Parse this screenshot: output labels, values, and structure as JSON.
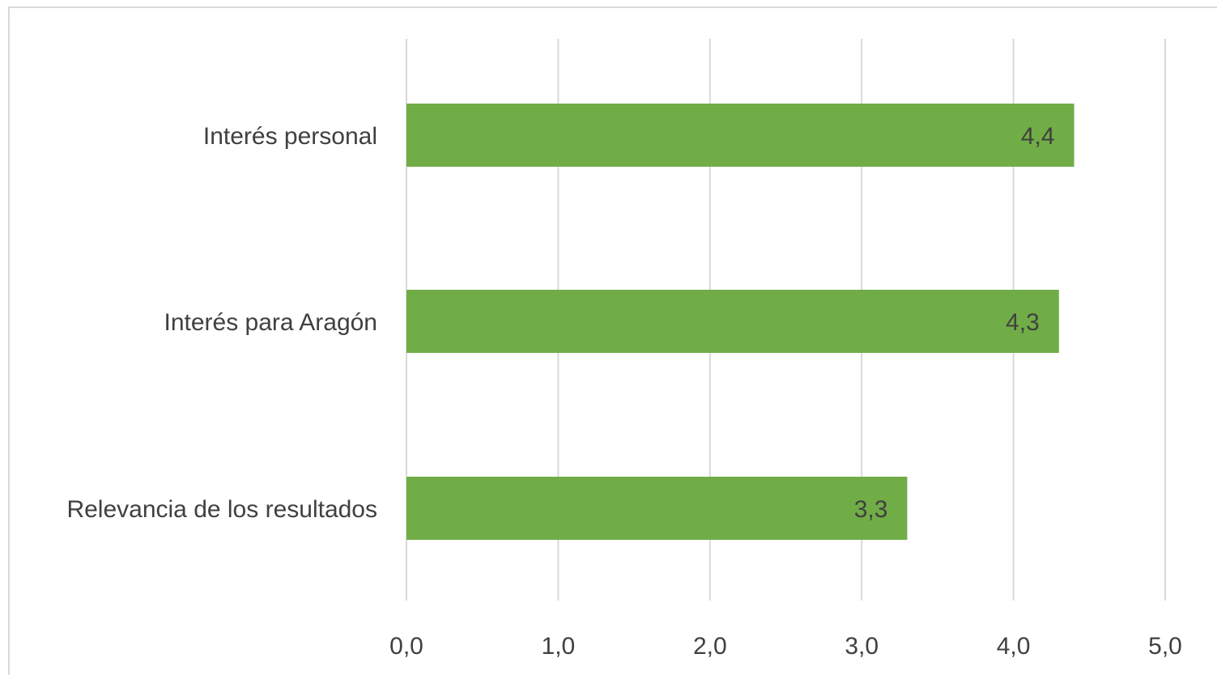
{
  "chart_data": {
    "type": "bar",
    "orientation": "horizontal",
    "categories": [
      "Interés personal",
      "Interés para Aragón",
      "Relevancia de los resultados"
    ],
    "values": [
      4.4,
      4.3,
      3.3
    ],
    "data_labels": [
      "4,4",
      "4,3",
      "3,3"
    ],
    "xlim": [
      0,
      5
    ],
    "x_ticks": [
      0,
      1,
      2,
      3,
      4,
      5
    ],
    "x_tick_labels": [
      "0,0",
      "1,0",
      "2,0",
      "3,0",
      "4,0",
      "5,0"
    ],
    "grid": true,
    "legend": "none",
    "colors": {
      "bar": "#70ad47",
      "grid": "#d9d9d9",
      "text": "#404040"
    }
  }
}
